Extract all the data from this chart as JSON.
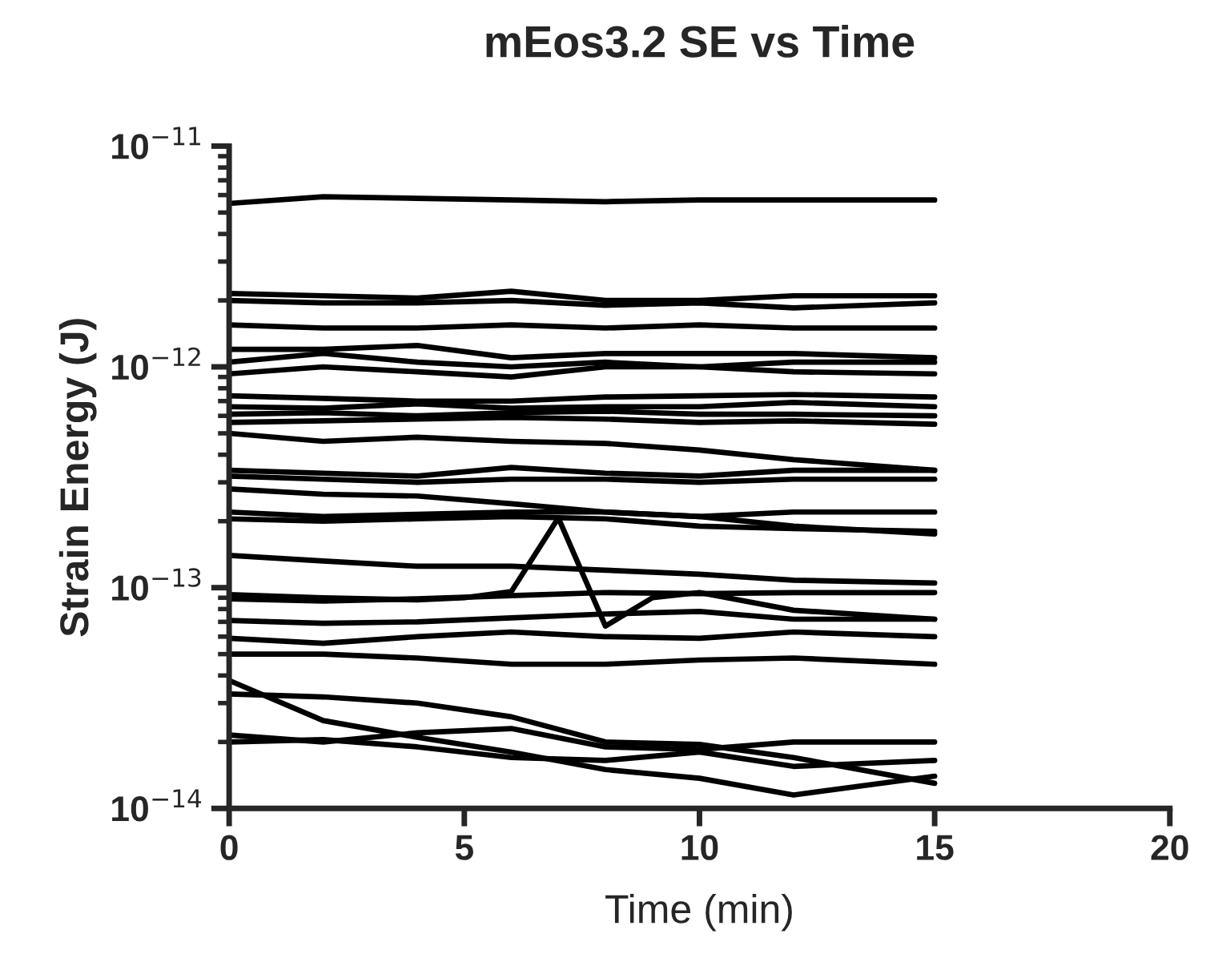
{
  "chart_data": {
    "type": "line",
    "title": "mEos3.2 SE vs Time",
    "xlabel": "Time (min)",
    "ylabel": "Strain Energy (J)",
    "x": [
      0,
      2,
      4,
      6,
      8,
      10,
      12,
      15
    ],
    "log": "y",
    "xlim": [
      0,
      20
    ],
    "xticks": [
      0,
      5,
      10,
      15,
      20
    ],
    "ylim": [
      1e-14,
      1e-11
    ],
    "yticks": [
      {
        "value": 1e-14,
        "label": "10$^{−14}$"
      },
      {
        "value": 1e-13,
        "label": "10$^{−13}$"
      },
      {
        "value": 1e-12,
        "label": "10$^{−12}$"
      },
      {
        "value": 1e-11,
        "label": "10$^{−11}$"
      }
    ],
    "grid": false,
    "legend": false,
    "marker": "none",
    "line_style": "solid",
    "series": [
      {
        "color": "#000000",
        "values": [
          5.5e-12,
          5.9e-12,
          5.8e-12,
          5.7e-12,
          5.6e-12,
          5.7e-12,
          5.7e-12,
          5.7e-12
        ]
      },
      {
        "color": "#000000",
        "values": [
          2.15e-12,
          2.1e-12,
          2.05e-12,
          2.2e-12,
          2e-12,
          2e-12,
          2.1e-12,
          2.1e-12
        ]
      },
      {
        "color": "#000000",
        "values": [
          2e-12,
          1.95e-12,
          1.95e-12,
          2e-12,
          1.9e-12,
          1.95e-12,
          1.85e-12,
          1.95e-12
        ]
      },
      {
        "color": "#000000",
        "values": [
          1.55e-12,
          1.5e-12,
          1.5e-12,
          1.55e-12,
          1.5e-12,
          1.55e-12,
          1.5e-12,
          1.5e-12
        ]
      },
      {
        "color": "#000000",
        "values": [
          1.2e-12,
          1.2e-12,
          1.25e-12,
          1.1e-12,
          1.15e-12,
          1.15e-12,
          1.15e-12,
          1.1e-12
        ]
      },
      {
        "color": "#000000",
        "values": [
          1.05e-12,
          1.15e-12,
          1.05e-12,
          1e-12,
          1.05e-12,
          1e-12,
          1.05e-12,
          1.05e-12
        ]
      },
      {
        "color": "#000000",
        "values": [
          9.3e-13,
          1e-12,
          9.5e-13,
          9e-13,
          1e-12,
          1e-12,
          9.5e-13,
          9.3e-13
        ]
      },
      {
        "color": "#000000",
        "values": [
          7.4e-13,
          7.2e-13,
          7e-13,
          7e-13,
          7.3e-13,
          7.4e-13,
          7.5e-13,
          7.3e-13
        ]
      },
      {
        "color": "#000000",
        "values": [
          6.6e-13,
          6.5e-13,
          6.8e-13,
          6.5e-13,
          6.6e-13,
          6.6e-13,
          6.9e-13,
          6.6e-13
        ]
      },
      {
        "color": "#000000",
        "values": [
          6.1e-13,
          6.2e-13,
          6e-13,
          6.2e-13,
          6.3e-13,
          6.1e-13,
          6.1e-13,
          6e-13
        ]
      },
      {
        "color": "#000000",
        "values": [
          5.6e-13,
          5.7e-13,
          5.8e-13,
          5.9e-13,
          5.8e-13,
          5.6e-13,
          5.7e-13,
          5.5e-13
        ]
      },
      {
        "color": "#000000",
        "values": [
          5e-13,
          4.6e-13,
          4.8e-13,
          4.6e-13,
          4.5e-13,
          4.2e-13,
          3.8e-13,
          3.4e-13
        ]
      },
      {
        "color": "#000000",
        "values": [
          3.4e-13,
          3.3e-13,
          3.2e-13,
          3.5e-13,
          3.3e-13,
          3.2e-13,
          3.4e-13,
          3.4e-13
        ]
      },
      {
        "color": "#000000",
        "values": [
          3.2e-13,
          3.1e-13,
          3e-13,
          3.1e-13,
          3.1e-13,
          3e-13,
          3.1e-13,
          3.1e-13
        ]
      },
      {
        "color": "#000000",
        "values": [
          2.8e-13,
          2.65e-13,
          2.6e-13,
          2.4e-13,
          2.2e-13,
          2.1e-13,
          1.9e-13,
          1.75e-13
        ]
      },
      {
        "color": "#000000",
        "values": [
          2.2e-13,
          2.1e-13,
          2.15e-13,
          2.2e-13,
          2.2e-13,
          2.1e-13,
          2.2e-13,
          2.2e-13
        ]
      },
      {
        "color": "#000000",
        "values": [
          2.05e-13,
          2e-13,
          2.05e-13,
          2.1e-13,
          2.05e-13,
          1.9e-13,
          1.85e-13,
          1.8e-13
        ]
      },
      {
        "color": "#000000",
        "x": [
          0,
          2,
          4,
          5,
          6,
          7,
          8,
          9,
          10,
          12,
          15
        ],
        "values": [
          9.3e-14,
          9e-14,
          8.8e-14,
          9e-14,
          9.6e-14,
          2.07e-13,
          6.7e-14,
          9e-14,
          9.5e-14,
          7.9e-14,
          7.2e-14
        ]
      },
      {
        "color": "#000000",
        "values": [
          1.4e-13,
          1.32e-13,
          1.25e-13,
          1.25e-13,
          1.2e-13,
          1.15e-13,
          1.08e-13,
          1.05e-13
        ]
      },
      {
        "color": "#000000",
        "values": [
          8.9e-14,
          8.7e-14,
          8.9e-14,
          9.2e-14,
          9.5e-14,
          9.4e-14,
          9.5e-14,
          9.5e-14
        ]
      },
      {
        "color": "#000000",
        "values": [
          7.1e-14,
          6.9e-14,
          7e-14,
          7.3e-14,
          7.6e-14,
          7.8e-14,
          7.2e-14,
          7.2e-14
        ]
      },
      {
        "color": "#000000",
        "values": [
          5.9e-14,
          5.6e-14,
          6e-14,
          6.3e-14,
          6e-14,
          5.9e-14,
          6.3e-14,
          6e-14
        ]
      },
      {
        "color": "#000000",
        "values": [
          5e-14,
          5e-14,
          4.8e-14,
          4.5e-14,
          4.5e-14,
          4.7e-14,
          4.8e-14,
          4.5e-14
        ]
      },
      {
        "color": "#000000",
        "values": [
          3.8e-14,
          2.5e-14,
          2.1e-14,
          1.8e-14,
          1.5e-14,
          1.37e-14,
          1.15e-14,
          1.4e-14
        ]
      },
      {
        "color": "#000000",
        "values": [
          3.3e-14,
          3.2e-14,
          3e-14,
          2.6e-14,
          2e-14,
          1.95e-14,
          1.7e-14,
          1.3e-14
        ]
      },
      {
        "color": "#000000",
        "values": [
          2.15e-14,
          2e-14,
          2.2e-14,
          2.3e-14,
          1.9e-14,
          1.85e-14,
          2e-14,
          2e-14
        ]
      },
      {
        "color": "#000000",
        "values": [
          2e-14,
          2.05e-14,
          1.9e-14,
          1.7e-14,
          1.65e-14,
          1.8e-14,
          1.55e-14,
          1.65e-14
        ]
      }
    ]
  }
}
